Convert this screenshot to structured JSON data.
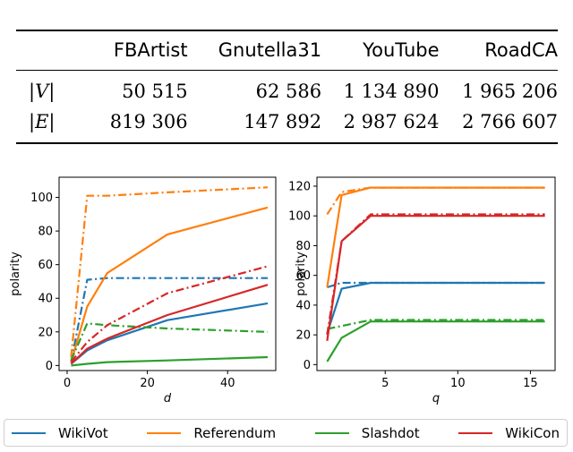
{
  "table": {
    "columns": [
      "FBArtist",
      "Gnutella31",
      "YouTube",
      "RoadCA"
    ],
    "rows": [
      {
        "label": "|V|",
        "values": [
          "50 515",
          "62 586",
          "1 134 890",
          "1 965 206"
        ]
      },
      {
        "label": "|E|",
        "values": [
          "819 306",
          "147 892",
          "2 987 624",
          "2 766 607"
        ]
      }
    ]
  },
  "colors": {
    "WikiVot": "#1f77b4",
    "Referendum": "#ff7f0e",
    "Slashdot": "#2ca02c",
    "WikiCon": "#d62728"
  },
  "legend": {
    "items": [
      {
        "label": "WikiVot",
        "color": "#1f77b4"
      },
      {
        "label": "Referendum",
        "color": "#ff7f0e"
      },
      {
        "label": "Slashdot",
        "color": "#2ca02c"
      },
      {
        "label": "WikiCon",
        "color": "#d62728"
      }
    ]
  },
  "chart_data": [
    {
      "type": "line",
      "xlabel": "d",
      "ylabel": "polarity",
      "xlim": [
        -2,
        52
      ],
      "ylim": [
        -3,
        112
      ],
      "xticks": [
        0,
        20,
        40
      ],
      "yticks": [
        0,
        20,
        40,
        60,
        80,
        100
      ],
      "grid": false,
      "series": [
        {
          "name": "WikiVot",
          "style": "solid",
          "x": [
            1,
            5,
            10,
            25,
            50
          ],
          "y": [
            1,
            9,
            15,
            27,
            37
          ]
        },
        {
          "name": "WikiVot",
          "style": "dashdot",
          "x": [
            1,
            5,
            10,
            25,
            50
          ],
          "y": [
            2,
            51,
            52,
            52,
            52
          ]
        },
        {
          "name": "Referendum",
          "style": "solid",
          "x": [
            1,
            5,
            10,
            25,
            50
          ],
          "y": [
            2,
            35,
            55,
            78,
            94
          ]
        },
        {
          "name": "Referendum",
          "style": "dashdot",
          "x": [
            1,
            5,
            10,
            25,
            50
          ],
          "y": [
            5,
            101,
            101,
            103,
            106
          ]
        },
        {
          "name": "Slashdot",
          "style": "solid",
          "x": [
            1,
            5,
            10,
            25,
            50
          ],
          "y": [
            0,
            1,
            2,
            3,
            5
          ]
        },
        {
          "name": "Slashdot",
          "style": "dashdot",
          "x": [
            1,
            5,
            10,
            25,
            50
          ],
          "y": [
            3,
            25,
            24,
            22,
            20
          ]
        },
        {
          "name": "WikiCon",
          "style": "solid",
          "x": [
            1,
            5,
            10,
            25,
            50
          ],
          "y": [
            1,
            10,
            16,
            30,
            48
          ]
        },
        {
          "name": "WikiCon",
          "style": "dashdot",
          "x": [
            1,
            5,
            10,
            25,
            50
          ],
          "y": [
            2,
            14,
            24,
            43,
            59
          ]
        }
      ]
    },
    {
      "type": "line",
      "xlabel": "q",
      "ylabel": "polarity",
      "xlim": [
        0.3,
        16.7
      ],
      "ylim": [
        -4,
        126
      ],
      "xticks": [
        5,
        10,
        15
      ],
      "yticks": [
        0,
        20,
        40,
        60,
        80,
        100,
        120
      ],
      "grid": false,
      "series": [
        {
          "name": "WikiVot",
          "style": "solid",
          "x": [
            1,
            2,
            4,
            8,
            16
          ],
          "y": [
            21,
            51,
            55,
            55,
            55
          ]
        },
        {
          "name": "WikiVot",
          "style": "dashdot",
          "x": [
            1,
            2,
            4,
            8,
            16
          ],
          "y": [
            52,
            55,
            55,
            55,
            55
          ]
        },
        {
          "name": "Referendum",
          "style": "solid",
          "x": [
            1,
            2,
            4,
            8,
            16
          ],
          "y": [
            52,
            114,
            119,
            119,
            119
          ]
        },
        {
          "name": "Referendum",
          "style": "dashdot",
          "x": [
            1,
            2,
            4,
            8,
            16
          ],
          "y": [
            101,
            116,
            119,
            119,
            119
          ]
        },
        {
          "name": "Slashdot",
          "style": "solid",
          "x": [
            1,
            2,
            4,
            8,
            16
          ],
          "y": [
            2,
            18,
            29,
            29,
            29
          ]
        },
        {
          "name": "Slashdot",
          "style": "dashdot",
          "x": [
            1,
            2,
            4,
            8,
            16
          ],
          "y": [
            24,
            26,
            30,
            30,
            30
          ]
        },
        {
          "name": "WikiCon",
          "style": "solid",
          "x": [
            1,
            2,
            4,
            8,
            16
          ],
          "y": [
            16,
            83,
            100,
            100,
            100
          ]
        },
        {
          "name": "WikiCon",
          "style": "dashdot",
          "x": [
            1,
            2,
            4,
            8,
            16
          ],
          "y": [
            20,
            83,
            101,
            101,
            101
          ]
        }
      ]
    }
  ]
}
